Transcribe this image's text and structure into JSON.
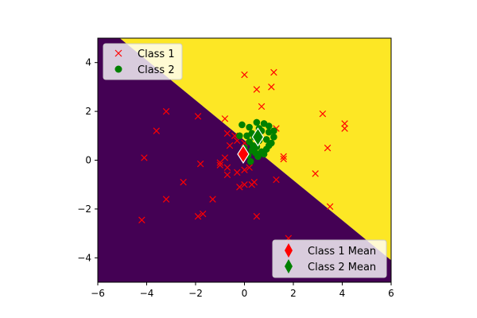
{
  "chart_data": {
    "type": "scatter",
    "title": "",
    "xlabel": "",
    "ylabel": "",
    "xlim": [
      -6,
      6
    ],
    "ylim": [
      -5,
      5
    ],
    "xticks": [
      -6,
      -4,
      -2,
      0,
      2,
      4,
      6
    ],
    "yticks": [
      -4,
      -2,
      0,
      2,
      4
    ],
    "xtick_labels": [
      "−6",
      "−4",
      "−2",
      "0",
      "2",
      "4",
      "6"
    ],
    "ytick_labels": [
      "−4",
      "−2",
      "0",
      "2",
      "4"
    ],
    "grid": false,
    "decision_boundary": {
      "description_points": [
        [
          -5.1,
          5.0
        ],
        [
          6.0,
          -4.1
        ]
      ],
      "region_above_color": "#fde725",
      "region_below_color": "#440154"
    },
    "series": [
      {
        "name": "Class 1",
        "marker": "x",
        "color": "#ff0000",
        "points": [
          [
            0.0,
            3.5
          ],
          [
            1.2,
            3.6
          ],
          [
            0.5,
            2.9
          ],
          [
            1.1,
            3.0
          ],
          [
            0.7,
            2.2
          ],
          [
            3.2,
            1.9
          ],
          [
            4.1,
            1.5
          ],
          [
            4.1,
            1.3
          ],
          [
            1.3,
            1.3
          ],
          [
            3.4,
            0.5
          ],
          [
            1.6,
            0.15
          ],
          [
            1.6,
            0.05
          ],
          [
            2.9,
            -0.55
          ],
          [
            1.3,
            -0.8
          ],
          [
            3.5,
            -1.9
          ],
          [
            1.8,
            -3.2
          ],
          [
            -3.2,
            2.0
          ],
          [
            -1.9,
            1.8
          ],
          [
            -3.6,
            1.2
          ],
          [
            -0.8,
            1.7
          ],
          [
            -0.7,
            1.1
          ],
          [
            -0.4,
            1.0
          ],
          [
            -0.6,
            0.6
          ],
          [
            -0.3,
            0.8
          ],
          [
            0.0,
            0.7
          ],
          [
            -4.1,
            0.1
          ],
          [
            -1.8,
            -0.15
          ],
          [
            -1.0,
            -0.1
          ],
          [
            -1.0,
            -0.2
          ],
          [
            -0.8,
            0.1
          ],
          [
            -0.7,
            -0.3
          ],
          [
            -0.7,
            -0.6
          ],
          [
            -0.3,
            -0.5
          ],
          [
            0.0,
            -0.4
          ],
          [
            0.2,
            -0.3
          ],
          [
            -2.5,
            -0.9
          ],
          [
            -0.2,
            -1.1
          ],
          [
            0.0,
            -1.0
          ],
          [
            0.3,
            -1.0
          ],
          [
            0.4,
            -0.9
          ],
          [
            -3.2,
            -1.6
          ],
          [
            -1.3,
            -1.6
          ],
          [
            -1.9,
            -2.3
          ],
          [
            -1.7,
            -2.2
          ],
          [
            0.5,
            -2.3
          ],
          [
            -4.2,
            -2.45
          ]
        ]
      },
      {
        "name": "Class 2",
        "marker": "o",
        "color": "#008000",
        "points": [
          [
            -0.1,
            1.45
          ],
          [
            0.2,
            1.35
          ],
          [
            0.5,
            1.55
          ],
          [
            0.8,
            1.5
          ],
          [
            0.6,
            1.3
          ],
          [
            1.0,
            1.4
          ],
          [
            0.3,
            1.1
          ],
          [
            0.7,
            1.2
          ],
          [
            1.0,
            1.15
          ],
          [
            1.2,
            0.95
          ],
          [
            0.1,
            1.0
          ],
          [
            0.4,
            0.95
          ],
          [
            0.9,
            0.85
          ],
          [
            1.1,
            0.7
          ],
          [
            0.2,
            0.75
          ],
          [
            0.6,
            0.8
          ],
          [
            0.0,
            0.5
          ],
          [
            0.3,
            0.4
          ],
          [
            0.5,
            0.55
          ],
          [
            0.9,
            0.45
          ],
          [
            1.0,
            0.6
          ],
          [
            0.15,
            0.2
          ],
          [
            0.45,
            0.3
          ],
          [
            0.7,
            0.35
          ],
          [
            0.25,
            -0.05
          ],
          [
            0.55,
            0.15
          ],
          [
            0.8,
            0.25
          ],
          [
            -0.2,
            1.0
          ],
          [
            1.2,
            1.2
          ],
          [
            0.35,
            0.6
          ]
        ]
      }
    ],
    "means": [
      {
        "name": "Class 1 Mean",
        "marker": "diamond",
        "color": "#ff0000",
        "x": -0.05,
        "y": 0.25
      },
      {
        "name": "Class 2 Mean",
        "marker": "diamond",
        "color": "#008000",
        "x": 0.55,
        "y": 0.95
      }
    ],
    "legends": [
      {
        "position": "upper-left",
        "entries": [
          "Class 1",
          "Class 2"
        ]
      },
      {
        "position": "lower-right",
        "entries": [
          "Class 1 Mean",
          "Class 2 Mean"
        ]
      }
    ]
  }
}
